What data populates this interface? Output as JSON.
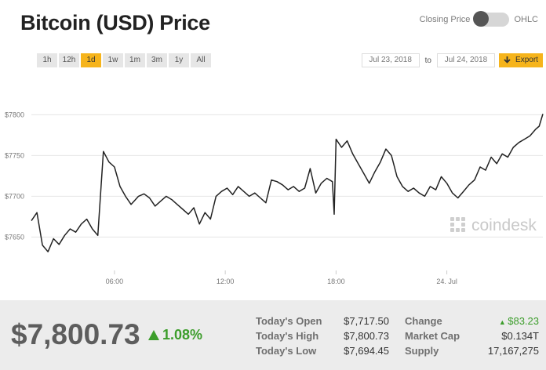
{
  "title": "Bitcoin (USD) Price",
  "toggle": {
    "left_label": "Closing Price",
    "right_label": "OHLC"
  },
  "ranges": [
    "1h",
    "12h",
    "1d",
    "1w",
    "1m",
    "3m",
    "1y",
    "All"
  ],
  "active_range": "1d",
  "dates": {
    "from": "Jul 23, 2018",
    "to_label": "to",
    "to": "Jul 24, 2018"
  },
  "export_label": "Export",
  "watermark": "coindesk",
  "chart_data": {
    "type": "line",
    "y_ticks": [
      "$7800",
      "$7750",
      "$7700",
      "$7650"
    ],
    "y_tick_values": [
      7800,
      7750,
      7700,
      7650
    ],
    "x_ticks": [
      "06:00",
      "12:00",
      "18:00",
      "24. Jul"
    ],
    "x_tick_hours": [
      6,
      12,
      18,
      24
    ],
    "ylim": [
      7610,
      7810
    ],
    "xlim": [
      1.5,
      29.2
    ],
    "grid": true,
    "series": [
      {
        "x": [
          1.5,
          1.8,
          2.1,
          2.4,
          2.7,
          3.0,
          3.3,
          3.6,
          3.9,
          4.2,
          4.5,
          4.8,
          5.1,
          5.4,
          5.7,
          6.0,
          6.3,
          6.6,
          6.9,
          7.1,
          7.3,
          7.6,
          7.9,
          8.2,
          8.5,
          8.8,
          9.1,
          9.4,
          9.7,
          10.0,
          10.3,
          10.6,
          10.9,
          11.2,
          11.5,
          11.8,
          12.1,
          12.4,
          12.7,
          13.0,
          13.3,
          13.6,
          13.9,
          14.2,
          14.5,
          14.8,
          15.1,
          15.4,
          15.7,
          16.0,
          16.3,
          16.6,
          16.9,
          17.2,
          17.5,
          17.8,
          17.9,
          18.0,
          18.3,
          18.6,
          18.9,
          19.2,
          19.5,
          19.8,
          20.1,
          20.4,
          20.7,
          21.0,
          21.3,
          21.6,
          21.9,
          22.2,
          22.5,
          22.8,
          23.1,
          23.4,
          23.7,
          24.0,
          24.3,
          24.6,
          24.9,
          25.2,
          25.5,
          25.8,
          26.1,
          26.4,
          26.7,
          27.0,
          27.3,
          27.6,
          27.9,
          28.2,
          28.5,
          28.8,
          29.0,
          29.2
        ],
        "y": [
          7670,
          7680,
          7640,
          7632,
          7648,
          7641,
          7652,
          7660,
          7656,
          7666,
          7672,
          7660,
          7652,
          7755,
          7742,
          7736,
          7712,
          7700,
          7690,
          7695,
          7700,
          7703,
          7698,
          7688,
          7694,
          7700,
          7696,
          7690,
          7684,
          7678,
          7686,
          7666,
          7680,
          7672,
          7700,
          7706,
          7710,
          7702,
          7712,
          7706,
          7700,
          7704,
          7698,
          7692,
          7720,
          7718,
          7714,
          7708,
          7712,
          7706,
          7710,
          7734,
          7704,
          7716,
          7722,
          7718,
          7678,
          7770,
          7760,
          7768,
          7752,
          7740,
          7728,
          7716,
          7730,
          7742,
          7758,
          7750,
          7724,
          7712,
          7706,
          7710,
          7704,
          7700,
          7712,
          7708,
          7724,
          7716,
          7704,
          7698,
          7706,
          7714,
          7720,
          7736,
          7732,
          7748,
          7740,
          7752,
          7748,
          7760,
          7766,
          7770,
          7774,
          7782,
          7786,
          7801
        ]
      }
    ]
  },
  "summary": {
    "price": "$7,800.73",
    "change_pct": "1.08%",
    "open_label": "Today's Open",
    "open_value": "$7,717.50",
    "high_label": "Today's High",
    "high_value": "$7,800.73",
    "low_label": "Today's Low",
    "low_value": "$7,694.45",
    "change_label": "Change",
    "change_value": "$83.23",
    "mcap_label": "Market Cap",
    "mcap_value": "$0.134T",
    "supply_label": "Supply",
    "supply_value": "17,167,275"
  },
  "colors": {
    "accent": "#f6b41b",
    "positive": "#3c9d2b",
    "line": "#222222"
  }
}
